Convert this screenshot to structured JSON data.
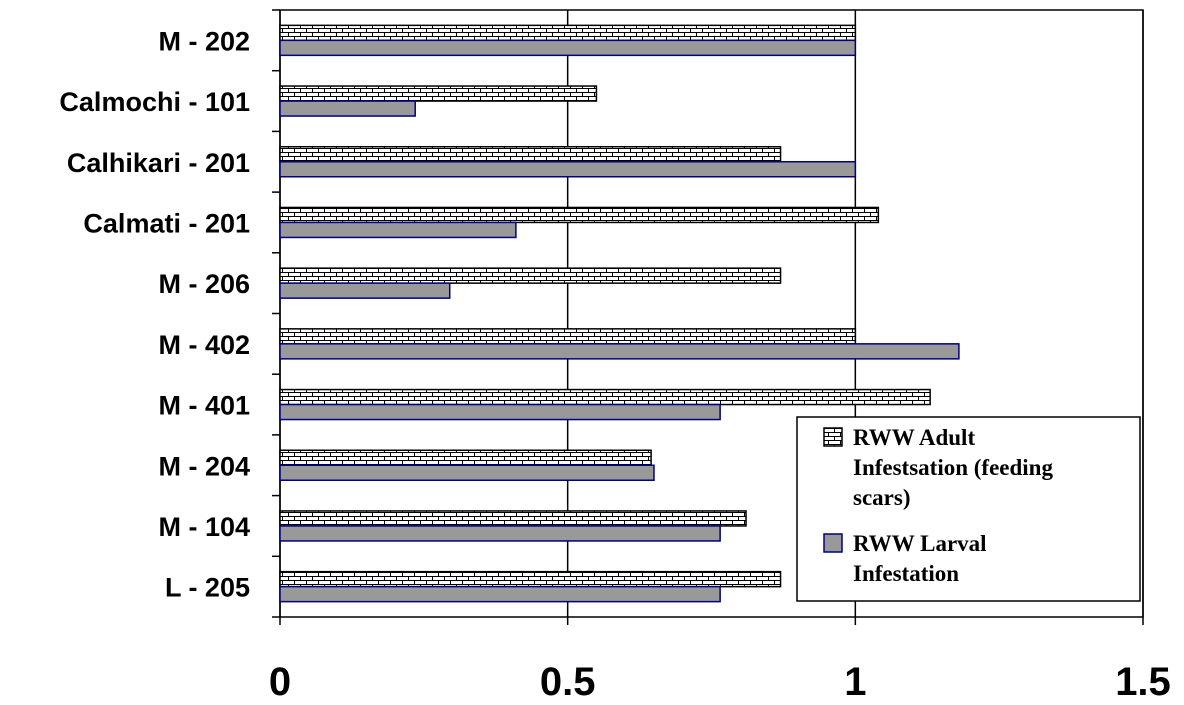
{
  "chart_data": {
    "type": "bar",
    "orientation": "horizontal",
    "categories": [
      "M - 202",
      "Calmochi - 101",
      "Calhikari - 201",
      "Calmati - 201",
      "M - 206",
      "M - 402",
      "M - 401",
      "M - 204",
      "M - 104",
      "L - 205"
    ],
    "series": [
      {
        "name": "RWW Adult Infestsation (feeding scars)",
        "values": [
          1.0,
          0.55,
          0.87,
          1.04,
          0.87,
          1.0,
          1.13,
          0.645,
          0.81,
          0.87
        ],
        "color": "#ffffff",
        "pattern": "brick"
      },
      {
        "name": "RWW Larval Infestation",
        "values": [
          1.0,
          0.235,
          1.0,
          0.41,
          0.295,
          1.18,
          0.765,
          0.65,
          0.765,
          0.765
        ],
        "color": "#999999",
        "border": "#000080"
      }
    ],
    "x_ticks": [
      "0",
      "0.5",
      "1",
      "1.5"
    ],
    "xlim": [
      0,
      1.5
    ],
    "grid": "vertical major gridlines",
    "legend_position": "bottom-right",
    "legend_lines": [
      [
        "RWW Adult",
        "Infestsation (feeding",
        "scars)"
      ],
      [
        "RWW Larval",
        "Infestation"
      ]
    ]
  }
}
